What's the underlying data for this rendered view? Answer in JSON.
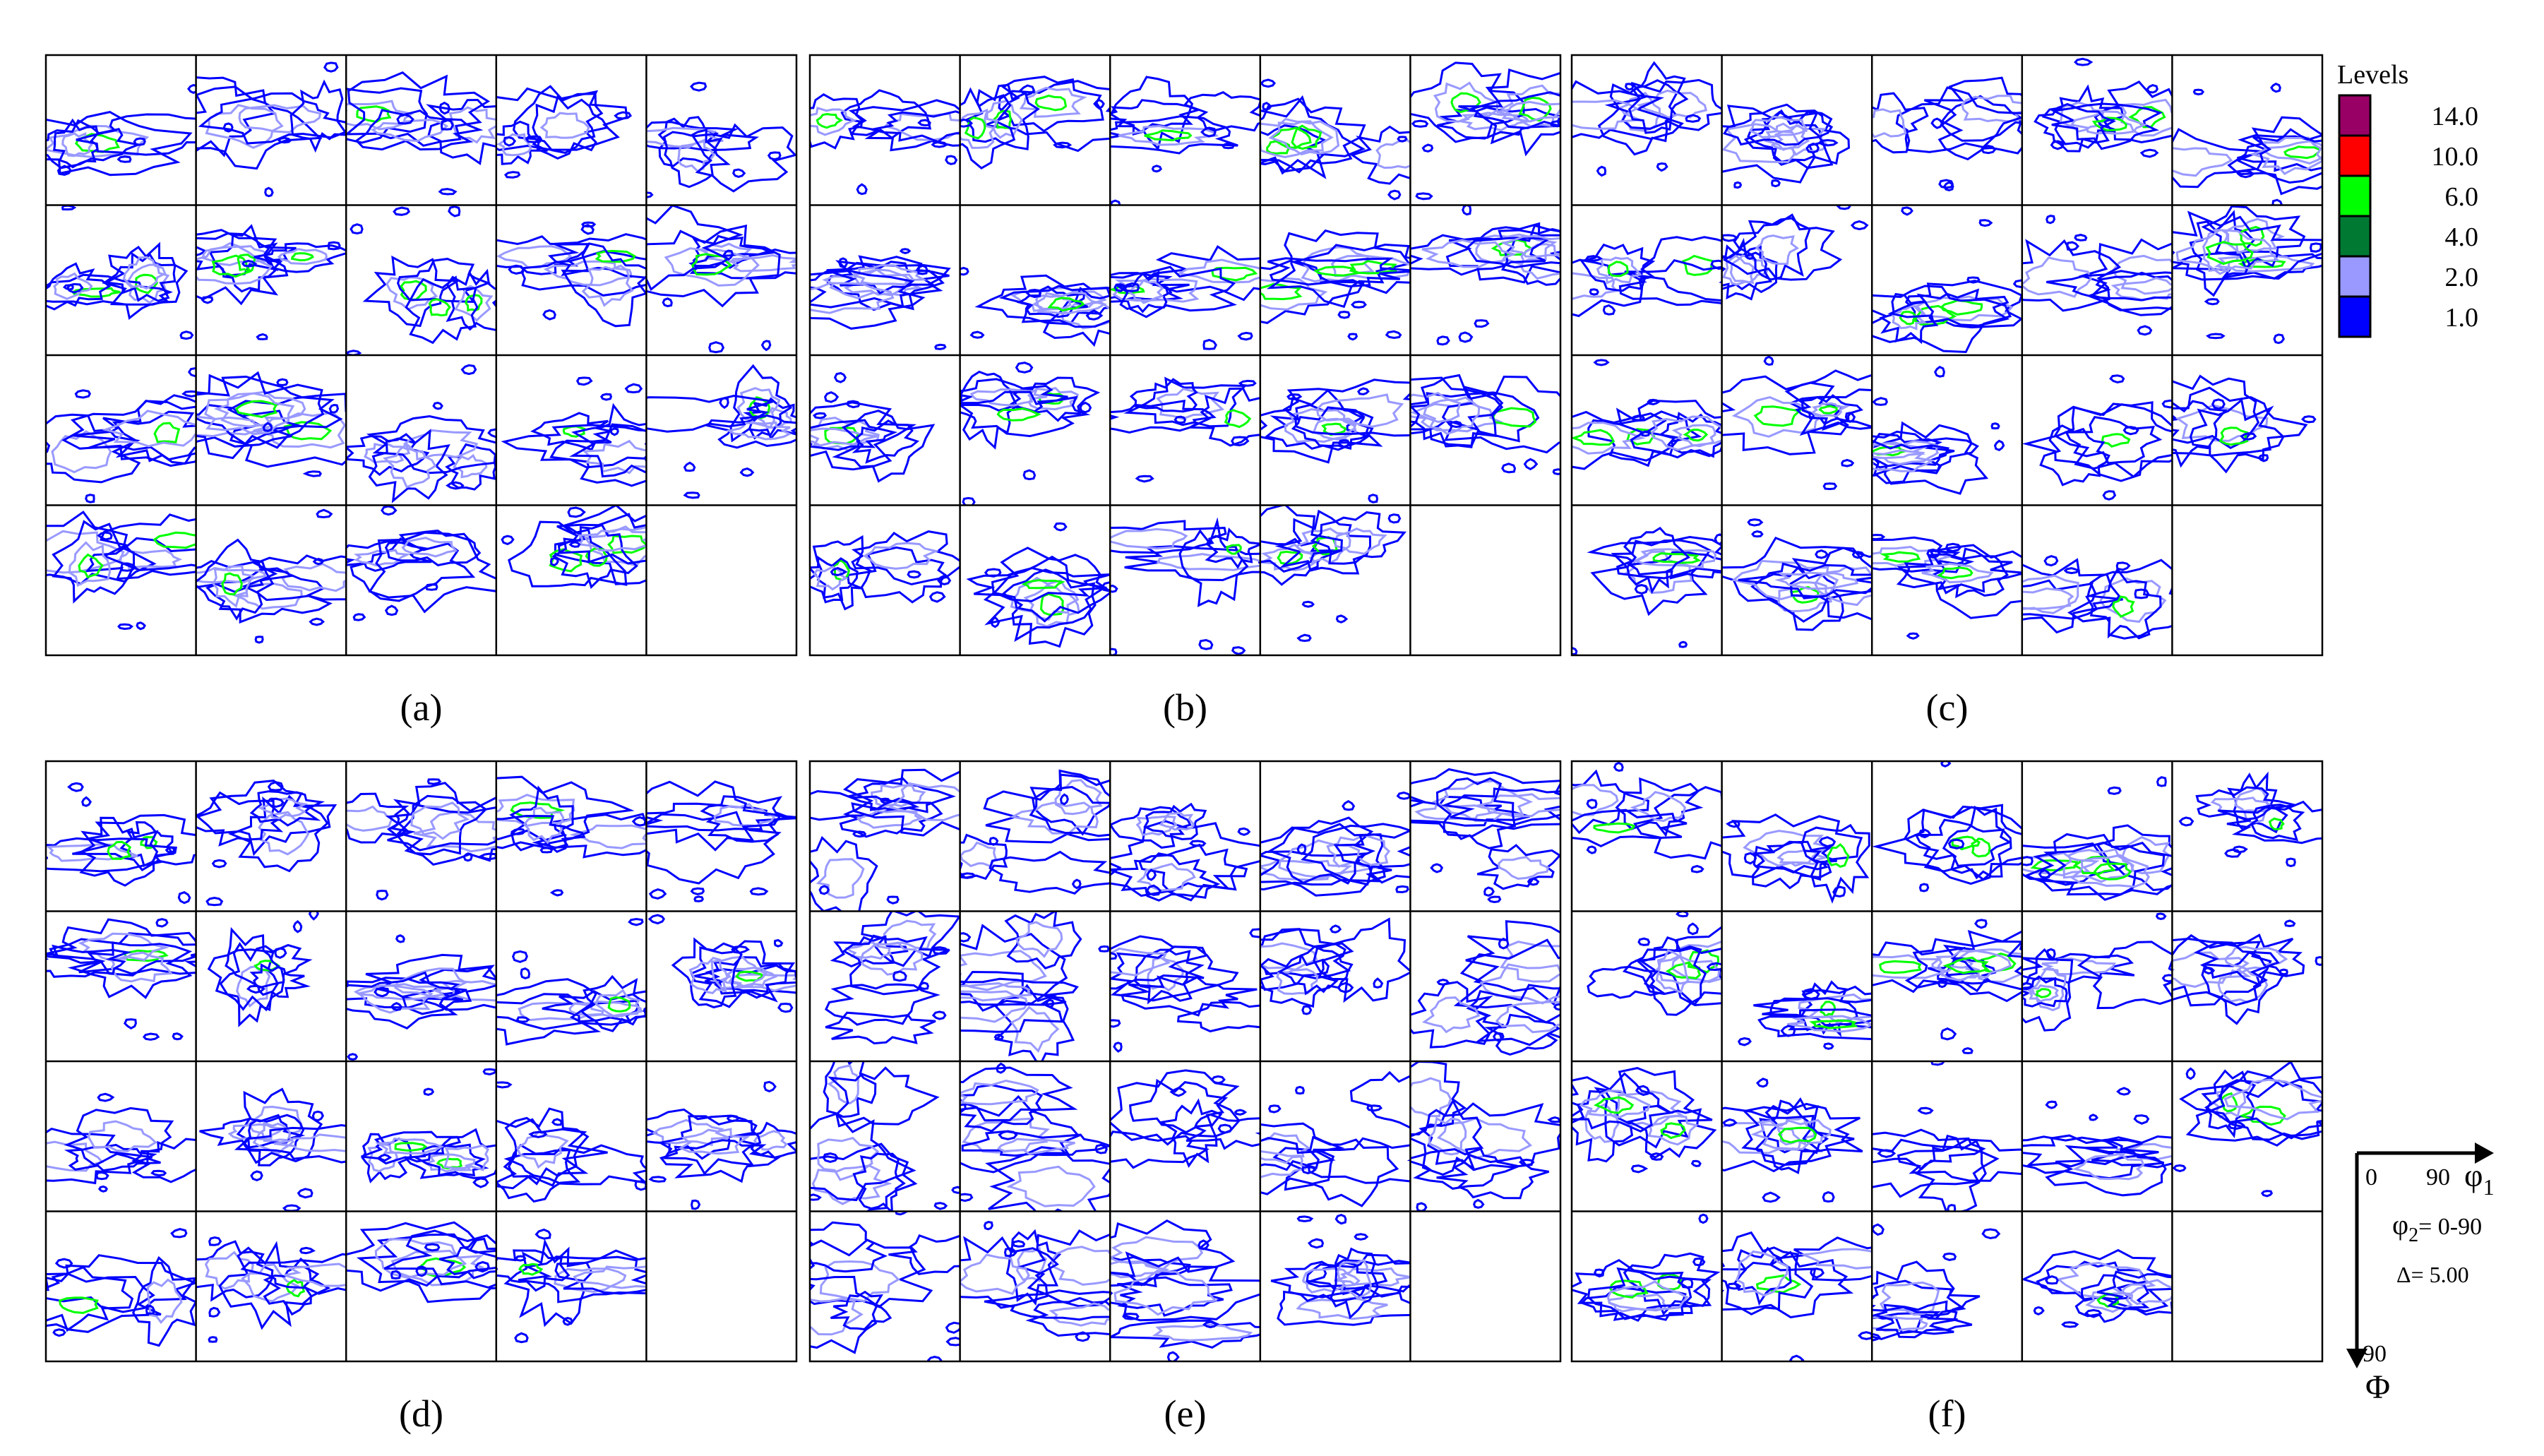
{
  "chart_data": {
    "type": "contour",
    "panels": [
      {
        "label": "(a)",
        "sections": 19
      },
      {
        "label": "(b)",
        "sections": 19
      },
      {
        "label": "(c)",
        "sections": 19
      },
      {
        "label": "(d)",
        "sections": 19
      },
      {
        "label": "(e)",
        "sections": 19
      },
      {
        "label": "(f)",
        "sections": 19
      }
    ],
    "legend": {
      "title": "Levels",
      "levels": [
        {
          "value": "14.0",
          "color": "#990066"
        },
        {
          "value": "10.0",
          "color": "#ff0000"
        },
        {
          "value": "6.0",
          "color": "#00ff00"
        },
        {
          "value": "4.0",
          "color": "#007a33"
        },
        {
          "value": "2.0",
          "color": "#9999ff"
        },
        {
          "value": "1.0",
          "color": "#0000ff"
        }
      ]
    },
    "axes_key": {
      "origin": "0",
      "x_tick": "90",
      "x_symbol": "φ",
      "x_subscript": "1",
      "y_tick": "90",
      "y_symbol": "Φ",
      "phi2_symbol": "φ",
      "phi2_subscript": "2",
      "phi2_text": "= 0-90",
      "step_text": "Δ= 5.00"
    },
    "contour_colors": [
      "#0000ff",
      "#9999ff",
      "#007a33",
      "#00ff00",
      "#ff0000"
    ]
  }
}
